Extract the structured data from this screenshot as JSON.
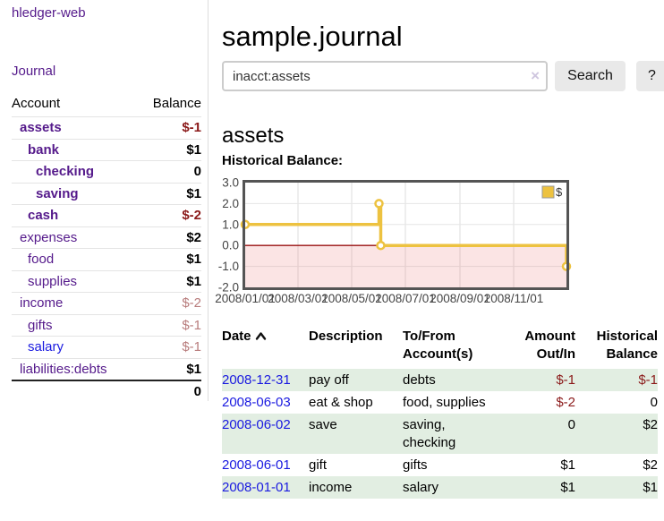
{
  "sidebar": {
    "brand": "hledger-web",
    "journal_link": "Journal",
    "accounts_table": {
      "account_header": "Account",
      "balance_header": "Balance",
      "rows": [
        {
          "name": "assets",
          "indent": 1,
          "bold": true,
          "link_color": "purple",
          "balance": "$-1",
          "balance_style": "neg-strong"
        },
        {
          "name": "bank",
          "indent": 2,
          "bold": true,
          "link_color": "purple",
          "balance": "$1",
          "balance_style": "pos"
        },
        {
          "name": "checking",
          "indent": 3,
          "bold": true,
          "link_color": "purple",
          "balance": "0",
          "balance_style": "pos"
        },
        {
          "name": "saving",
          "indent": 3,
          "bold": true,
          "link_color": "purple",
          "balance": "$1",
          "balance_style": "pos"
        },
        {
          "name": "cash",
          "indent": 2,
          "bold": true,
          "link_color": "purple",
          "balance": "$-2",
          "balance_style": "neg-strong"
        },
        {
          "name": "expenses",
          "indent": 1,
          "bold": false,
          "link_color": "purple",
          "balance": "$2",
          "balance_style": "pos"
        },
        {
          "name": "food",
          "indent": 2,
          "bold": false,
          "link_color": "purple",
          "balance": "$1",
          "balance_style": "pos"
        },
        {
          "name": "supplies",
          "indent": 2,
          "bold": false,
          "link_color": "purple",
          "balance": "$1",
          "balance_style": "pos"
        },
        {
          "name": "income",
          "indent": 1,
          "bold": false,
          "link_color": "purple",
          "balance": "$-2",
          "balance_style": "neg-soft"
        },
        {
          "name": "gifts",
          "indent": 2,
          "bold": false,
          "link_color": "purple",
          "balance": "$-1",
          "balance_style": "neg-soft"
        },
        {
          "name": "salary",
          "indent": 2,
          "bold": false,
          "link_color": "blue",
          "balance": "$-1",
          "balance_style": "neg-soft"
        },
        {
          "name": "liabilities:debts",
          "indent": 1,
          "bold": false,
          "link_color": "purple",
          "balance": "$1",
          "balance_style": "pos"
        }
      ],
      "total": "0"
    }
  },
  "main": {
    "title": "sample.journal",
    "search": {
      "value": "inacct:assets",
      "clear_icon": "×",
      "search_button": "Search",
      "help_button": "?"
    },
    "account_heading": "assets",
    "chart_title": "Historical Balance:"
  },
  "chart_data": {
    "type": "line",
    "step": true,
    "title": "Historical Balance",
    "xlim": [
      "2008-01-01",
      "2008-12-31"
    ],
    "ylim": [
      -2,
      3
    ],
    "legend": {
      "position": "top-right"
    },
    "series": [
      {
        "name": "$",
        "color": "#edc240",
        "points": [
          {
            "date": "2008-01-01",
            "value": 1
          },
          {
            "date": "2008-06-01",
            "value": 2
          },
          {
            "date": "2008-06-03",
            "value": 0
          },
          {
            "date": "2008-12-31",
            "value": -1
          }
        ]
      }
    ],
    "x_ticks": [
      {
        "date": "2008-01-01",
        "label": "2008/01/01"
      },
      {
        "date": "2008-03-01",
        "label": "2008/03/01"
      },
      {
        "date": "2008-05-01",
        "label": "2008/05/01"
      },
      {
        "date": "2008-07-01",
        "label": "2008/07/01"
      },
      {
        "date": "2008-09-01",
        "label": "2008/09/01"
      },
      {
        "date": "2008-11-01",
        "label": "2008/11/01"
      }
    ],
    "y_ticks": [
      {
        "value": 3,
        "label": "3.0"
      },
      {
        "value": 2,
        "label": "2.0"
      },
      {
        "value": 1,
        "label": "1.0"
      },
      {
        "value": 0,
        "label": "0.0"
      },
      {
        "value": -1,
        "label": "-1.0"
      },
      {
        "value": -2,
        "label": "-2.0"
      }
    ],
    "grid": true,
    "negative_region_fill": "rgba(232,90,90,0.16)",
    "zero_line_color": "#990f0f",
    "plot_border_color": "#545454"
  },
  "register": {
    "headers": {
      "date": "Date",
      "description": "Description",
      "tofrom": "To/From Account(s)",
      "amount": "Amount Out/In",
      "balance": "Historical Balance"
    },
    "sort": "ascending",
    "rows": [
      {
        "date": "2008-12-31",
        "description": "pay off",
        "tofrom": "debts",
        "amount": "$-1",
        "amount_negative": true,
        "balance": "$-1",
        "balance_negative": true
      },
      {
        "date": "2008-06-03",
        "description": "eat & shop",
        "tofrom": "food, supplies",
        "amount": "$-2",
        "amount_negative": true,
        "balance": "0",
        "balance_negative": false
      },
      {
        "date": "2008-06-02",
        "description": "save",
        "tofrom": "saving,\nchecking",
        "amount": "0",
        "amount_negative": false,
        "balance": "$2",
        "balance_negative": false
      },
      {
        "date": "2008-06-01",
        "description": "gift",
        "tofrom": "gifts",
        "amount": "$1",
        "amount_negative": false,
        "balance": "$2",
        "balance_negative": false
      },
      {
        "date": "2008-01-01",
        "description": "income",
        "tofrom": "salary",
        "amount": "$1",
        "amount_negative": false,
        "balance": "$1",
        "balance_negative": false
      }
    ]
  }
}
